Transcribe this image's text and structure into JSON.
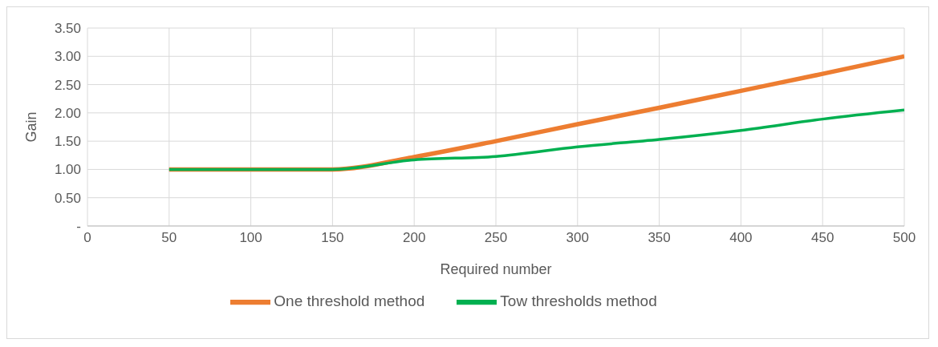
{
  "chart_data": {
    "type": "line",
    "xlabel": "Required number",
    "ylabel": "Gain",
    "x": [
      50,
      100,
      150,
      200,
      250,
      300,
      350,
      400,
      450,
      500
    ],
    "series": [
      {
        "name": "One threshold method",
        "color": "#ed7d31",
        "values": [
          1.0,
          1.0,
          1.0,
          1.22,
          1.5,
          1.8,
          2.09,
          2.39,
          2.69,
          3.0
        ]
      },
      {
        "name": "Tow thresholds method",
        "color": "#00b050",
        "values": [
          1.0,
          1.0,
          1.0,
          1.17,
          1.23,
          1.4,
          1.53,
          1.69,
          1.89,
          2.05
        ]
      }
    ],
    "xlim": [
      0,
      500
    ],
    "xticks": [
      0,
      50,
      100,
      150,
      200,
      250,
      300,
      350,
      400,
      450,
      500
    ],
    "ylim": [
      0,
      3.5
    ],
    "yticks": [
      {
        "value": 0,
        "label": "-"
      },
      {
        "value": 0.5,
        "label": "0.50"
      },
      {
        "value": 1,
        "label": "1.00"
      },
      {
        "value": 1.5,
        "label": "1.50"
      },
      {
        "value": 2,
        "label": "2.00"
      },
      {
        "value": 2.5,
        "label": "2.50"
      },
      {
        "value": 3,
        "label": "3.00"
      },
      {
        "value": 3.5,
        "label": "3.50"
      }
    ],
    "grid": true,
    "legend": "bottom",
    "marker": "none",
    "line_style": "solid"
  }
}
